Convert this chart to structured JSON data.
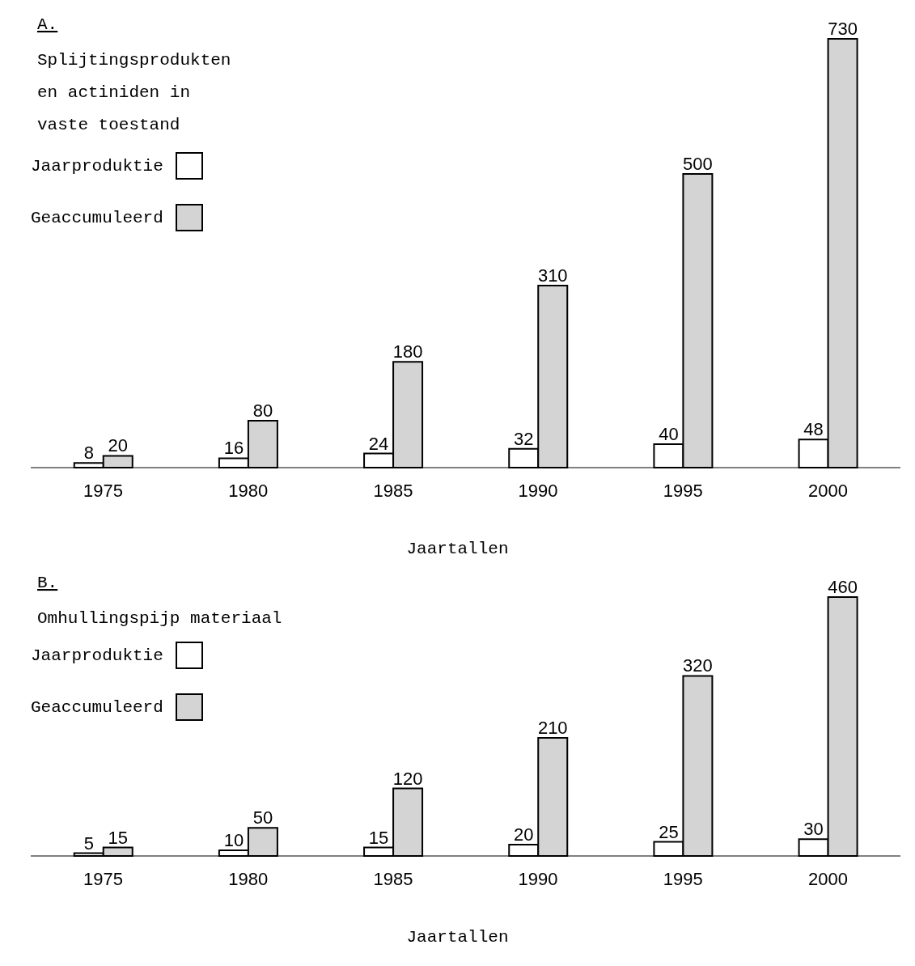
{
  "chart_data": [
    {
      "type": "bar",
      "title": "A.",
      "subtitle": "Splijtingsprodukten\nen actiniden in\nvaste toestand",
      "xlabel": "Jaartallen",
      "categories": [
        "1975",
        "1980",
        "1985",
        "1990",
        "1995",
        "2000"
      ],
      "series": [
        {
          "name": "Jaarproduktie",
          "color": "#ffffff",
          "values": [
            8,
            16,
            24,
            32,
            40,
            48
          ]
        },
        {
          "name": "Geaccumuleerd",
          "color": "#d4d4d4",
          "values": [
            20,
            80,
            180,
            310,
            500,
            730
          ]
        }
      ],
      "data_labels": true,
      "legend": "top left",
      "grid": false
    },
    {
      "type": "bar",
      "title": "B.",
      "subtitle": "Omhullingspijp materiaal",
      "xlabel": "Jaartallen",
      "categories": [
        "1975",
        "1980",
        "1985",
        "1990",
        "1995",
        "2000"
      ],
      "series": [
        {
          "name": "Jaarproduktie",
          "color": "#ffffff",
          "values": [
            5,
            10,
            15,
            20,
            25,
            30
          ]
        },
        {
          "name": "Geaccumuleerd",
          "color": "#d4d4d4",
          "values": [
            15,
            50,
            120,
            210,
            320,
            460
          ]
        }
      ],
      "data_labels": true,
      "legend": "top left",
      "grid": false
    }
  ]
}
